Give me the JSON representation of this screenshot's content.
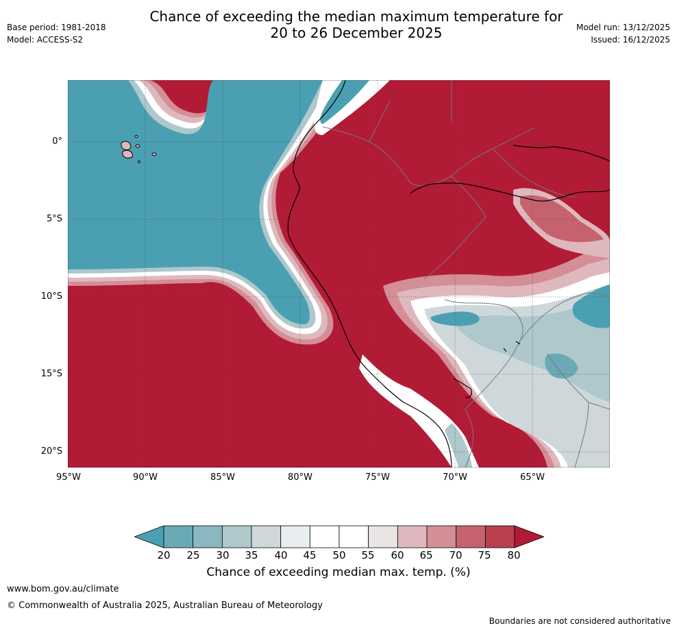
{
  "header": {
    "title_line1": "Chance of exceeding the median maximum temperature for",
    "title_line2": "20 to 26 December 2025",
    "base_period": "Base period: 1981-2018",
    "model": "Model: ACCESS-S2",
    "model_run": "Model run: 13/12/2025",
    "issued": "Issued: 16/12/2025"
  },
  "map": {
    "lat_labels": [
      "0°",
      "5°S",
      "10°S",
      "15°S",
      "20°S"
    ],
    "lon_labels": [
      "95°W",
      "90°W",
      "85°W",
      "80°W",
      "75°W",
      "70°W",
      "65°W"
    ]
  },
  "colorbar": {
    "ticks": [
      "20",
      "25",
      "30",
      "35",
      "40",
      "45",
      "50",
      "55",
      "60",
      "65",
      "70",
      "75",
      "80"
    ],
    "label": "Chance of exceeding median max. temp. (%)",
    "colors": [
      "#4aa0b2",
      "#6aa9b6",
      "#8bb7c1",
      "#aec8cc",
      "#ced8da",
      "#e8eef0",
      "#ffffff",
      "#ffffff",
      "#ebe4e5",
      "#dfb8bd",
      "#d38e96",
      "#c4636e",
      "#b8404f",
      "#b21b36"
    ]
  },
  "footer": {
    "website": "www.bom.gov.au/climate",
    "copyright": "© Commonwealth of Australia 2025, Australian Bureau of Meteorology",
    "disclaimer": "Boundaries are not considered authoritative"
  }
}
